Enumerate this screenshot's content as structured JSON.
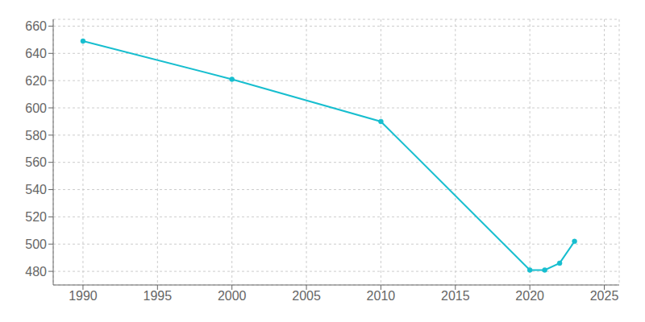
{
  "chart_data": {
    "type": "line",
    "x": [
      1990,
      2000,
      2010,
      2020,
      2021,
      2022,
      2023
    ],
    "values": [
      649,
      621,
      590,
      481,
      481,
      486,
      502
    ],
    "color": "#17becf",
    "marker": "o",
    "xlim": [
      1988,
      2026
    ],
    "ylim": [
      470,
      665
    ],
    "xticks": [
      1990,
      1995,
      2000,
      2005,
      2010,
      2015,
      2020,
      2025
    ],
    "yticks": [
      480,
      500,
      520,
      540,
      560,
      580,
      600,
      620,
      640,
      660
    ],
    "grid": true
  }
}
